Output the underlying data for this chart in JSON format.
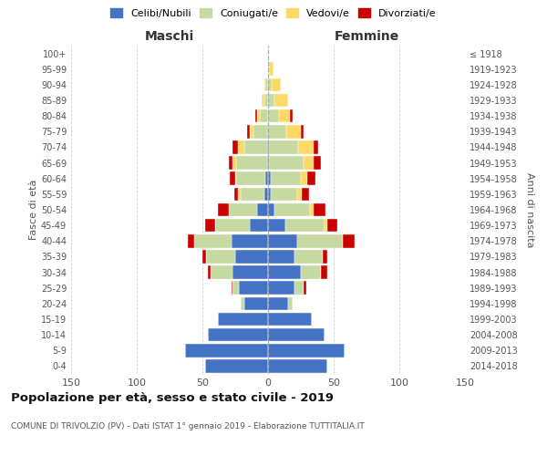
{
  "age_groups": [
    "0-4",
    "5-9",
    "10-14",
    "15-19",
    "20-24",
    "25-29",
    "30-34",
    "35-39",
    "40-44",
    "45-49",
    "50-54",
    "55-59",
    "60-64",
    "65-69",
    "70-74",
    "75-79",
    "80-84",
    "85-89",
    "90-94",
    "95-99",
    "100+"
  ],
  "birth_years": [
    "2014-2018",
    "2009-2013",
    "2004-2008",
    "1999-2003",
    "1994-1998",
    "1989-1993",
    "1984-1988",
    "1979-1983",
    "1974-1978",
    "1969-1973",
    "1964-1968",
    "1959-1963",
    "1954-1958",
    "1949-1953",
    "1944-1948",
    "1939-1943",
    "1934-1938",
    "1929-1933",
    "1924-1928",
    "1919-1923",
    "≤ 1918"
  ],
  "male": {
    "celibi": [
      48,
      63,
      46,
      38,
      18,
      22,
      27,
      25,
      28,
      14,
      8,
      3,
      2,
      1,
      1,
      1,
      0,
      0,
      0,
      0,
      0
    ],
    "coniugati": [
      0,
      0,
      0,
      0,
      3,
      5,
      17,
      22,
      28,
      26,
      22,
      18,
      22,
      23,
      17,
      10,
      6,
      3,
      2,
      0,
      0
    ],
    "vedovi": [
      0,
      0,
      0,
      0,
      0,
      0,
      0,
      0,
      0,
      0,
      0,
      2,
      1,
      3,
      5,
      3,
      2,
      2,
      1,
      0,
      0
    ],
    "divorziati": [
      0,
      0,
      0,
      0,
      0,
      1,
      2,
      3,
      5,
      8,
      8,
      3,
      4,
      3,
      4,
      2,
      2,
      0,
      0,
      0,
      0
    ]
  },
  "female": {
    "nubili": [
      45,
      58,
      43,
      33,
      15,
      20,
      25,
      20,
      22,
      13,
      5,
      2,
      2,
      1,
      1,
      0,
      0,
      0,
      0,
      0,
      0
    ],
    "coniugate": [
      0,
      0,
      0,
      0,
      4,
      7,
      15,
      22,
      35,
      30,
      27,
      20,
      23,
      26,
      22,
      14,
      8,
      5,
      3,
      1,
      0
    ],
    "vedove": [
      0,
      0,
      0,
      0,
      0,
      0,
      0,
      0,
      0,
      2,
      3,
      4,
      5,
      8,
      12,
      11,
      9,
      10,
      7,
      3,
      0
    ],
    "divorziate": [
      0,
      0,
      0,
      0,
      0,
      2,
      5,
      3,
      9,
      8,
      9,
      5,
      6,
      5,
      3,
      2,
      2,
      0,
      0,
      0,
      0
    ]
  },
  "colors": {
    "celibi": "#4472C4",
    "coniugati": "#C5D9A0",
    "vedovi": "#FFD966",
    "divorziati": "#CC0000"
  },
  "title": "Popolazione per età, sesso e stato civile - 2019",
  "subtitle": "COMUNE DI TRIVOLZIO (PV) - Dati ISTAT 1° gennaio 2019 - Elaborazione TUTTITALIA.IT",
  "xlabel_left": "Maschi",
  "xlabel_right": "Femmine",
  "ylabel_left": "Fasce di età",
  "ylabel_right": "Anni di nascita",
  "xlim": 150,
  "background_color": "#ffffff",
  "grid_color": "#cccccc",
  "legend_labels": [
    "Celibi/Nubili",
    "Coniugati/e",
    "Vedovi/e",
    "Divorziati/e"
  ]
}
